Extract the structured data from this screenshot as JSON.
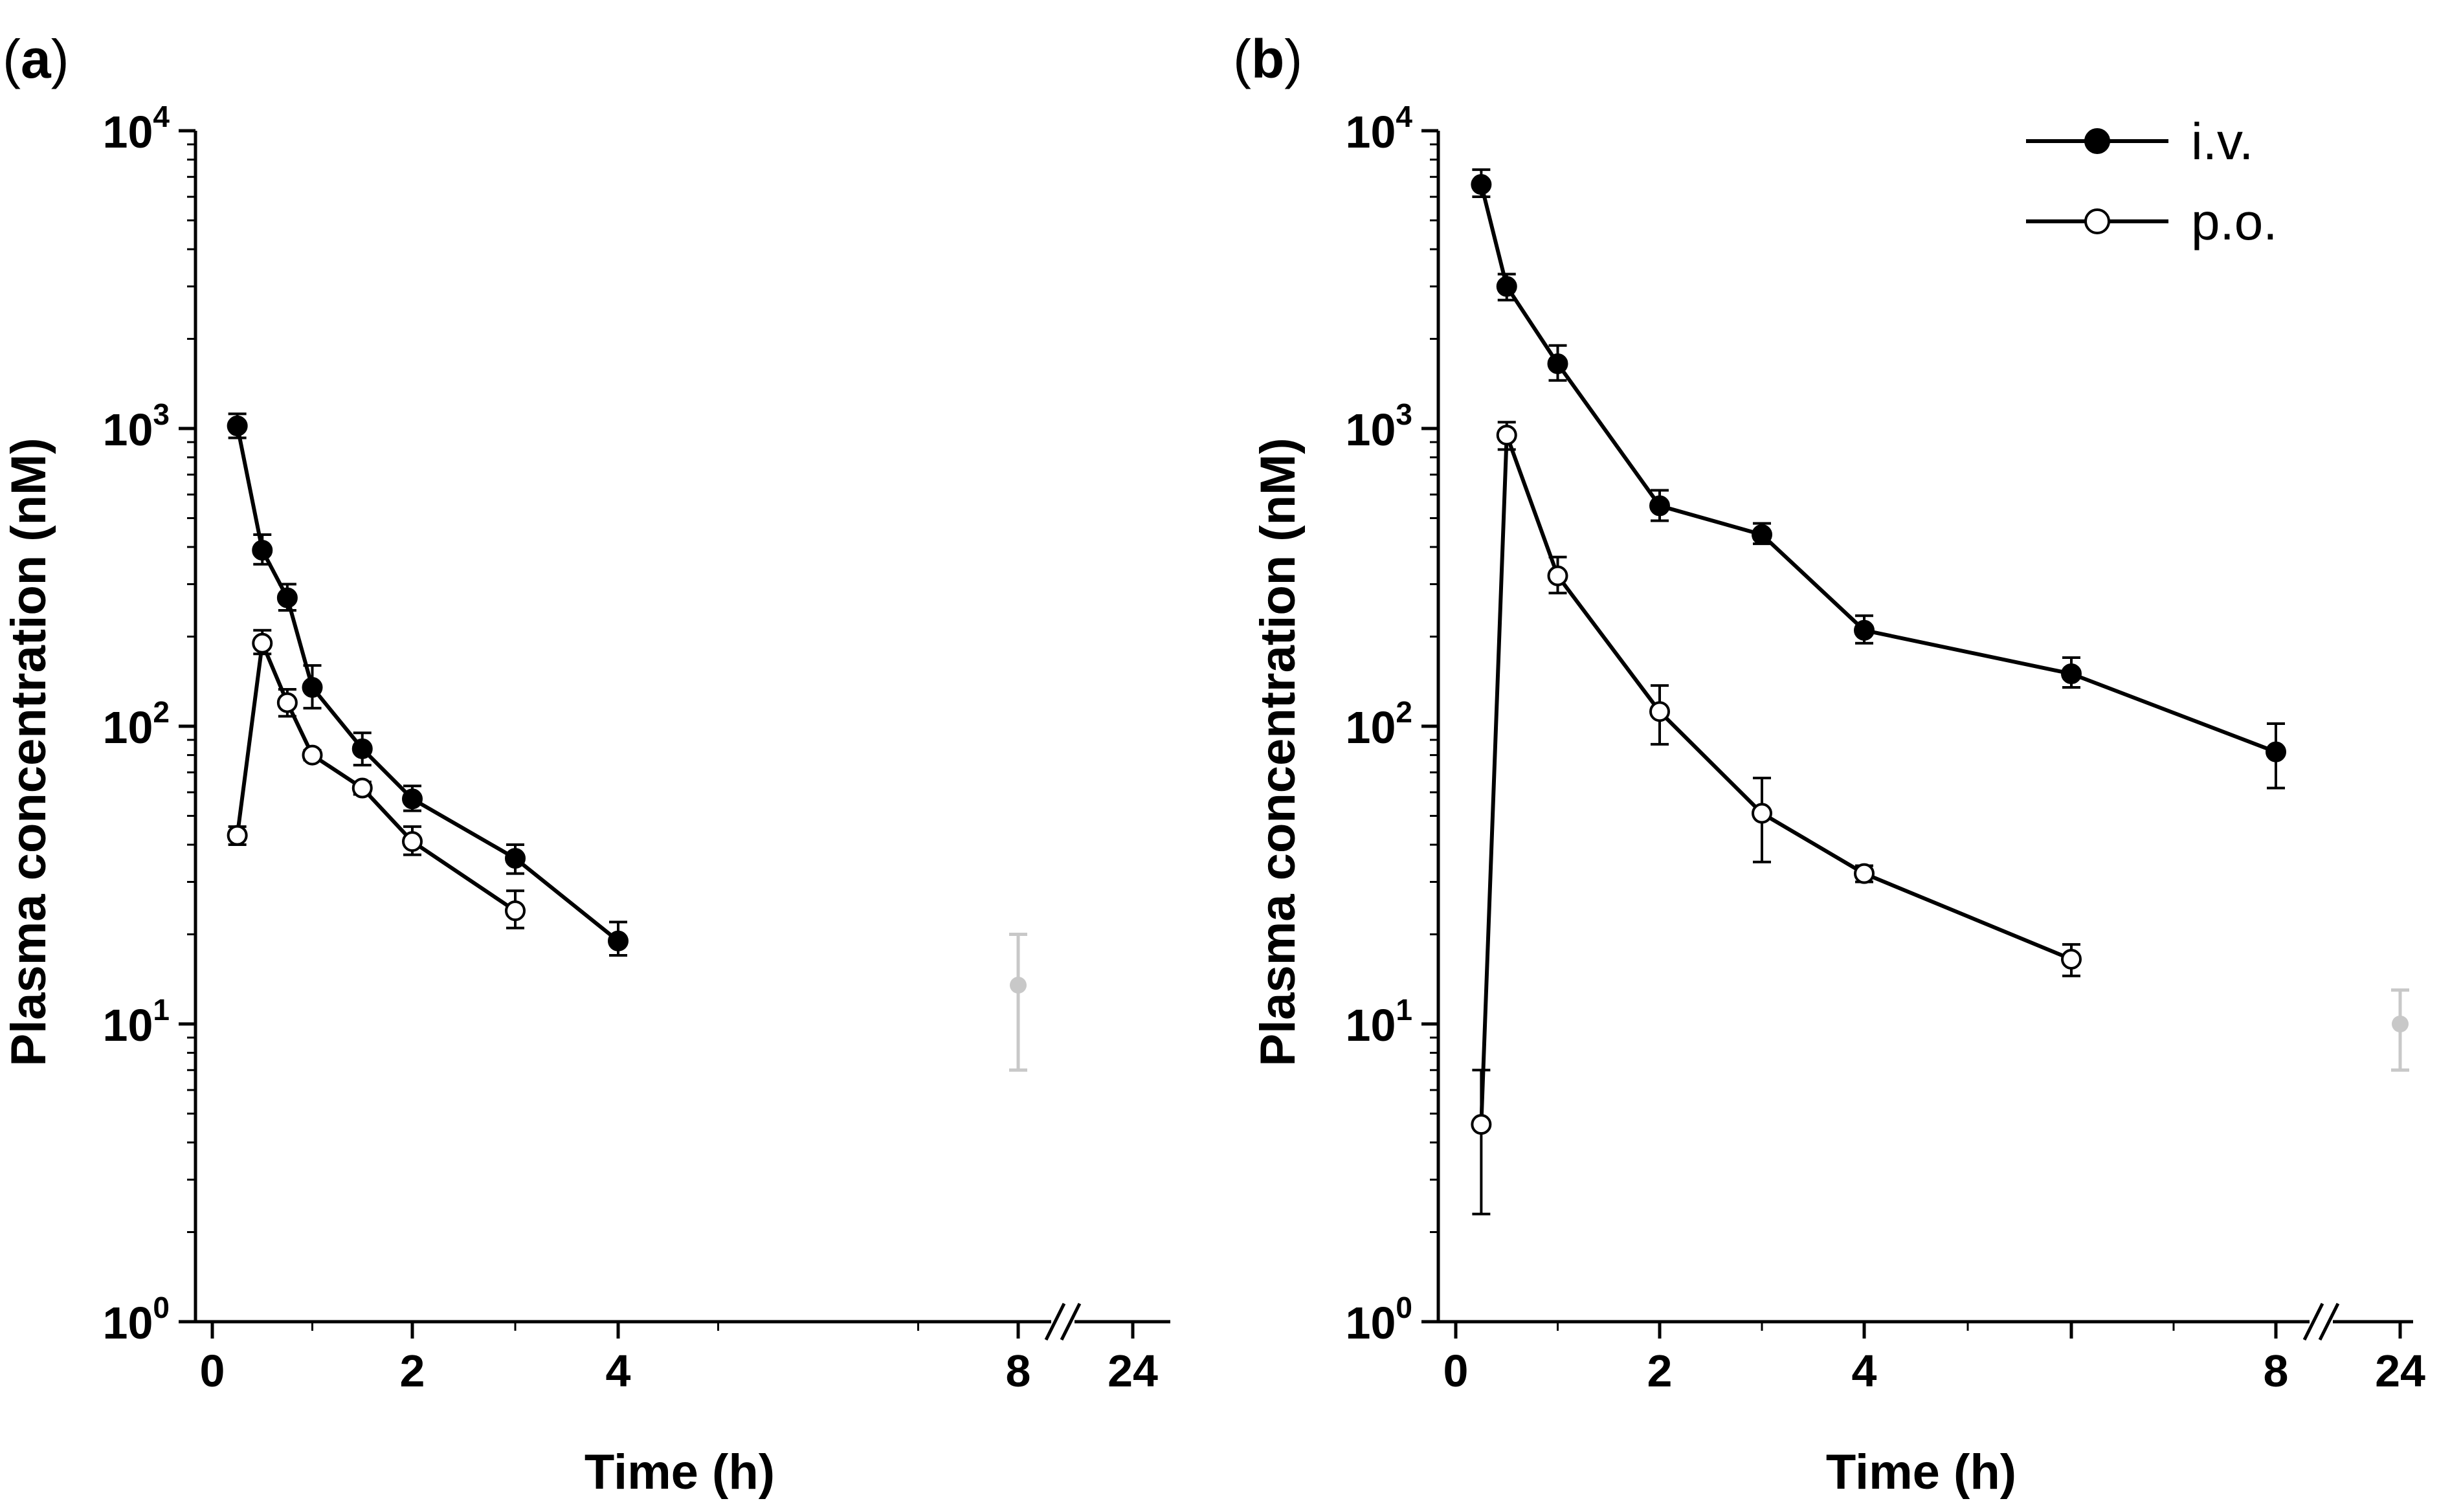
{
  "chart_data": [
    {
      "type": "line",
      "panel": "a",
      "label_open": "(",
      "label_letter": "a",
      "label_close": ")",
      "xlabel": "Time (h)",
      "ylabel": "Plasma concentration (nM)",
      "yscale": "log",
      "ylim": [
        1,
        10000
      ],
      "ytick_base": "10",
      "ytick_exponents": [
        "0",
        "1",
        "2",
        "3",
        "4"
      ],
      "xtick_labels": [
        "0",
        "2",
        "4",
        "8",
        "24"
      ],
      "x_break_between": [
        "8",
        "24"
      ],
      "series": [
        {
          "name": "i.v.",
          "marker": "filled",
          "color": "#000000",
          "x": [
            0.25,
            0.5,
            0.75,
            1,
            1.5,
            2,
            3,
            4
          ],
          "y": [
            1020,
            390,
            270,
            135,
            84,
            57,
            36,
            19
          ],
          "err_low": [
            930,
            350,
            245,
            115,
            74,
            52,
            32,
            17
          ],
          "err_high": [
            1120,
            440,
            300,
            160,
            95,
            63,
            40,
            22
          ]
        },
        {
          "name": "p.o.",
          "marker": "open",
          "color": "#000000",
          "x": [
            0.25,
            0.5,
            0.75,
            1,
            1.5,
            2,
            3
          ],
          "y": [
            43,
            190,
            120,
            80,
            62,
            41,
            24
          ],
          "err_low": [
            40,
            175,
            108,
            77,
            59,
            37,
            21
          ],
          "err_high": [
            46,
            210,
            133,
            83,
            65,
            46,
            28
          ]
        }
      ],
      "gray_point": {
        "x": 8,
        "y": 13.5,
        "err_low": 7,
        "err_high": 20,
        "color": "#c8c8c8"
      }
    },
    {
      "type": "line",
      "panel": "b",
      "label_open": "(",
      "label_letter": "b",
      "label_close": ")",
      "xlabel": "Time (h)",
      "ylabel": "Plasma concentration (nM)",
      "yscale": "log",
      "ylim": [
        1,
        10000
      ],
      "ytick_base": "10",
      "ytick_exponents": [
        "0",
        "1",
        "2",
        "3",
        "4"
      ],
      "xtick_labels": [
        "0",
        "2",
        "4",
        "8",
        "24"
      ],
      "x_break_between": [
        "8",
        "24"
      ],
      "series": [
        {
          "name": "i.v.",
          "marker": "filled",
          "color": "#000000",
          "x": [
            0.25,
            0.5,
            1,
            2,
            3,
            4,
            6,
            8
          ],
          "y": [
            6600,
            3000,
            1650,
            550,
            440,
            210,
            150,
            82
          ],
          "err_low": [
            6000,
            2700,
            1450,
            490,
            410,
            190,
            135,
            62
          ],
          "err_high": [
            7400,
            3300,
            1900,
            620,
            480,
            235,
            170,
            102
          ]
        },
        {
          "name": "p.o.",
          "marker": "open",
          "color": "#000000",
          "x": [
            0.25,
            0.5,
            1,
            2,
            3,
            4,
            6
          ],
          "y": [
            4.6,
            950,
            320,
            112,
            51,
            32,
            16.5
          ],
          "err_low": [
            2.3,
            850,
            280,
            87,
            35,
            30,
            14.5
          ],
          "err_high": [
            7,
            1050,
            370,
            137,
            67,
            34,
            18.5
          ]
        }
      ],
      "gray_point": {
        "x": 24,
        "y": 10,
        "err_low": 7,
        "err_high": 13,
        "color": "#c8c8c8"
      },
      "legend": {
        "position": "top-right",
        "items": [
          "i.v.",
          "p.o."
        ]
      }
    }
  ]
}
